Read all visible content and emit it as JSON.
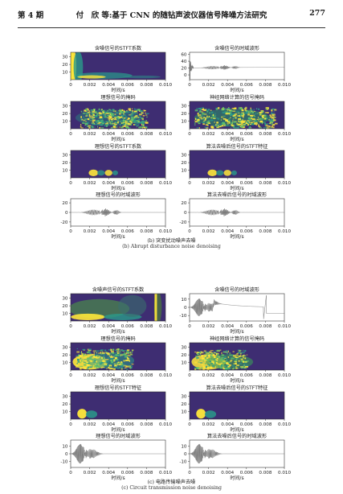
{
  "header": {
    "issue": "第 4 期",
    "title": "付　欣 等:基于 CNN 的随钻声波仪器信号降噪方法研究",
    "page": "277"
  },
  "colors": {
    "spectro_bg": "#3e2d72",
    "spectro_hot": "#ffe83a",
    "spectro_mid": "#2a9a8a",
    "wave": "#777777"
  },
  "sections": [
    {
      "caption_cn": "(b) 突变扰动噪声去噪",
      "caption_en": "(b) Abrupt disturbance noise denoising",
      "panels": {
        "stft_noisy_title": "含噪信号的STFT系数",
        "wave_noisy_title": "含噪信号的时域波形",
        "mask_ideal_title": "理想信号的掩码",
        "mask_pred_title": "神经网络计算的信号掩码",
        "stft_ideal_title": "理想信号的STFT系数",
        "stft_denoised_title": "算法去噪后信号的STFT特征",
        "wave_ideal_title": "理想信号的时域波形",
        "wave_denoised_title": "算法去噪后信号的时域波形"
      }
    },
    {
      "caption_cn": "(c) 电路传输噪声去噪",
      "caption_en": "(c) Circuit transmission noise denoising",
      "panels": {
        "stft_noisy_title": "含噪声信号的STFT系数",
        "wave_noisy_title": "含噪信号的时域波形",
        "mask_ideal_title": "理想信号的掩码",
        "mask_pred_title": "神经网络计算的信号掩码",
        "stft_ideal_title": "理想信号的STFT特征",
        "stft_denoised_title": "算法去噪后信号的STFT特征",
        "wave_ideal_title": "理想信号的时域波形",
        "wave_denoised_title": "算法去噪后信号的时域波形"
      }
    }
  ],
  "axes": {
    "xlabel": "时间/s",
    "xticks": [
      "0",
      "0.002",
      "0.004",
      "0.006",
      "0.008",
      "0.010"
    ],
    "spectro_yticks": [
      "10",
      "20",
      "30"
    ],
    "wave_b_noisy_yticks": [
      "0",
      "20",
      "40",
      "60"
    ],
    "wave_b_yticks": [
      "0",
      "20",
      "-20"
    ],
    "wave_c_yticks": [
      "0",
      "10",
      "-10"
    ]
  }
}
